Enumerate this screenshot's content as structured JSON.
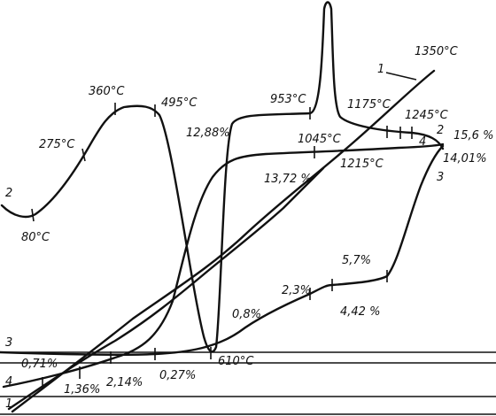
{
  "labels": [
    "1350°C",
    "1",
    "953°C",
    "1175°C",
    "1245°C",
    "360°C",
    "495°C",
    "275°C",
    "12,88%",
    "1045°C",
    "2",
    "15,6 %",
    "4",
    "1215°C",
    "14,01%",
    "13,72 %",
    "3",
    "2",
    "80°C",
    "5,7%",
    "2,3%",
    "4,42 %",
    "0,8%",
    "3",
    "610°C",
    "0,71%",
    "0,27%",
    "2,14%",
    "1,36%",
    "4",
    "1"
  ]
}
